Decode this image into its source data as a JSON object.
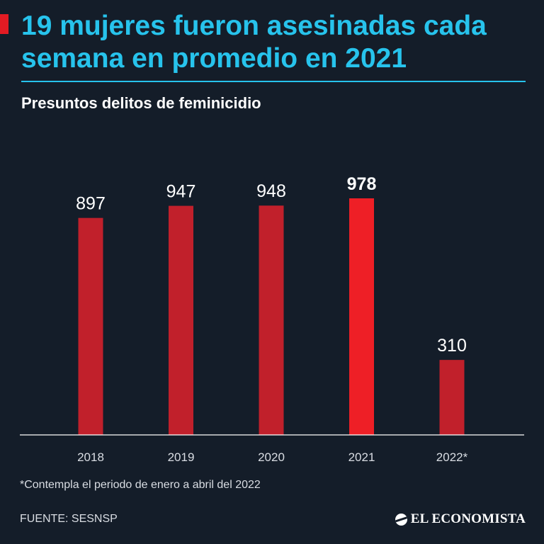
{
  "header": {
    "title": "19 mujeres fueron asesinadas cada semana en promedio en 2021",
    "subtitle": "Presuntos delitos de feminicidio"
  },
  "footer": {
    "footnote": "*Contempla el periodo de enero a abril del 2022",
    "source": "FUENTE: SESNSP",
    "brand": "EL ECONOMISTA"
  },
  "colors": {
    "background": "#141d29",
    "title": "#27c3ec",
    "bar": "#c1202b",
    "bar_highlight": "#ee1f26",
    "axis": "#ffffff"
  },
  "chart_data": {
    "type": "bar",
    "title": "Presuntos delitos de feminicidio",
    "categories": [
      "2018",
      "2019",
      "2020",
      "2021",
      "2022*"
    ],
    "values": [
      897,
      947,
      948,
      978,
      310
    ],
    "value_labels": [
      "897",
      "947",
      "948",
      "978",
      "310"
    ],
    "highlight": "2021",
    "xlabel": "",
    "ylabel": "",
    "ylim": [
      0,
      1000
    ],
    "grid": false
  }
}
